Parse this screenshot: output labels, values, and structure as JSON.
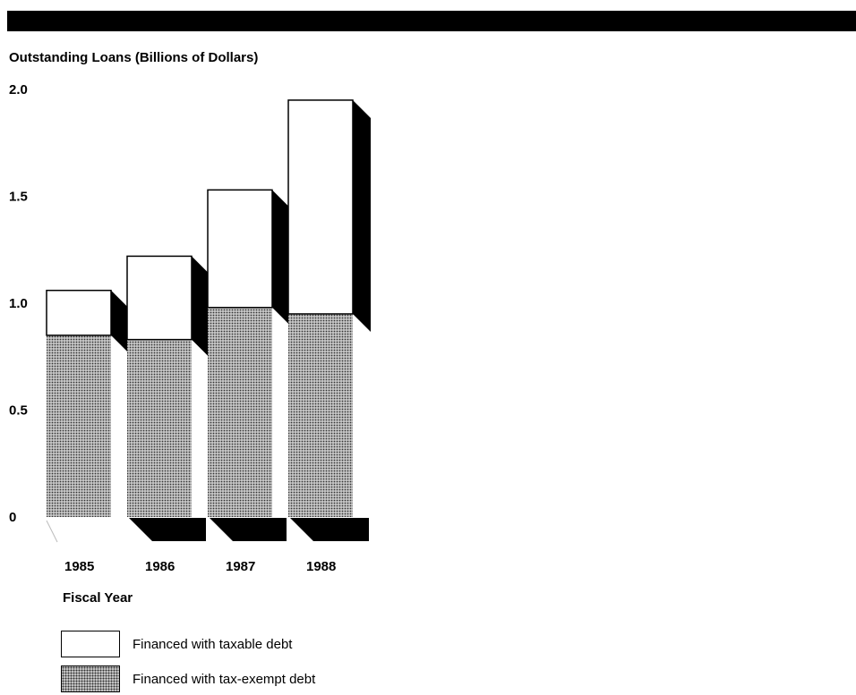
{
  "chart_data": {
    "type": "bar",
    "stacked": true,
    "categories": [
      "1985",
      "1986",
      "1987",
      "1988"
    ],
    "series": [
      {
        "name": "Financed with tax-exempt debt",
        "values": [
          0.85,
          0.83,
          0.98,
          0.95
        ]
      },
      {
        "name": "Financed with taxable debt",
        "values": [
          0.21,
          0.39,
          0.55,
          1.0
        ]
      }
    ],
    "totals": [
      1.06,
      1.22,
      1.53,
      1.95
    ],
    "ylabel": "Outstanding Loans (Billions of Dollars)",
    "xlabel": "Fiscal Year",
    "yticks": [
      "0",
      "0.5",
      "1.0",
      "1.5",
      "2.0"
    ],
    "ylim": [
      0,
      2.0
    ],
    "grid": false,
    "legend_position": "bottom-left",
    "colors": {
      "taxable": "#ffffff",
      "tax_exempt": "#9a9a9a",
      "ink": "#000000"
    }
  }
}
